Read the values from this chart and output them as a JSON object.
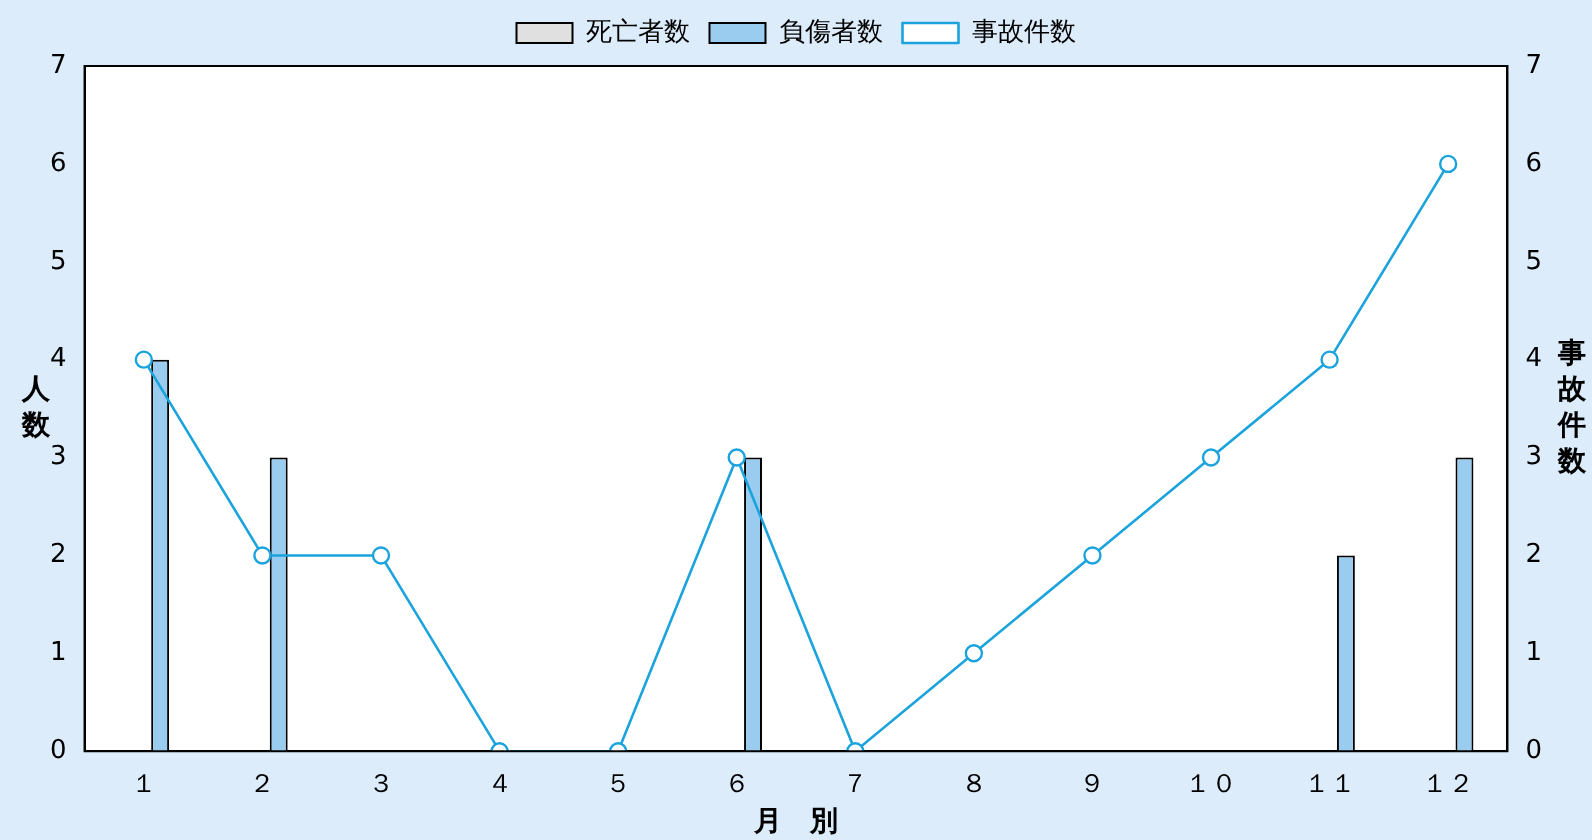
{
  "chart_data": {
    "type": "bar",
    "xlabel": "月　別",
    "ylabel": "人数",
    "y2label": "事故件数",
    "categories": [
      "１",
      "２",
      "３",
      "４",
      "５",
      "６",
      "７",
      "８",
      "９",
      "１０",
      "１１",
      "１２"
    ],
    "series": [
      {
        "name": "死亡者数",
        "color": "#e0e0e0",
        "values": [
          0,
          0,
          0,
          0,
          0,
          0,
          0,
          0,
          0,
          0,
          0,
          0
        ]
      },
      {
        "name": "負傷者数",
        "color": "#99ccee",
        "values": [
          4,
          3,
          0,
          0,
          0,
          3,
          0,
          0,
          0,
          0,
          2,
          3
        ]
      },
      {
        "name": "事故件数",
        "type": "line",
        "axis": "y2",
        "color": "#1aa3dd",
        "values": [
          4,
          2,
          2,
          0,
          0,
          3,
          0,
          1,
          2,
          3,
          4,
          6
        ]
      }
    ],
    "ylim": [
      0,
      7
    ],
    "yticks": [
      0,
      1,
      2,
      3,
      4,
      5,
      6,
      7
    ],
    "y2lim": [
      0,
      7
    ],
    "y2ticks": [
      0,
      1,
      2,
      3,
      4,
      5,
      6,
      7
    ],
    "grid": false,
    "legend": "top",
    "marker": "circle",
    "line_style": "solid"
  }
}
